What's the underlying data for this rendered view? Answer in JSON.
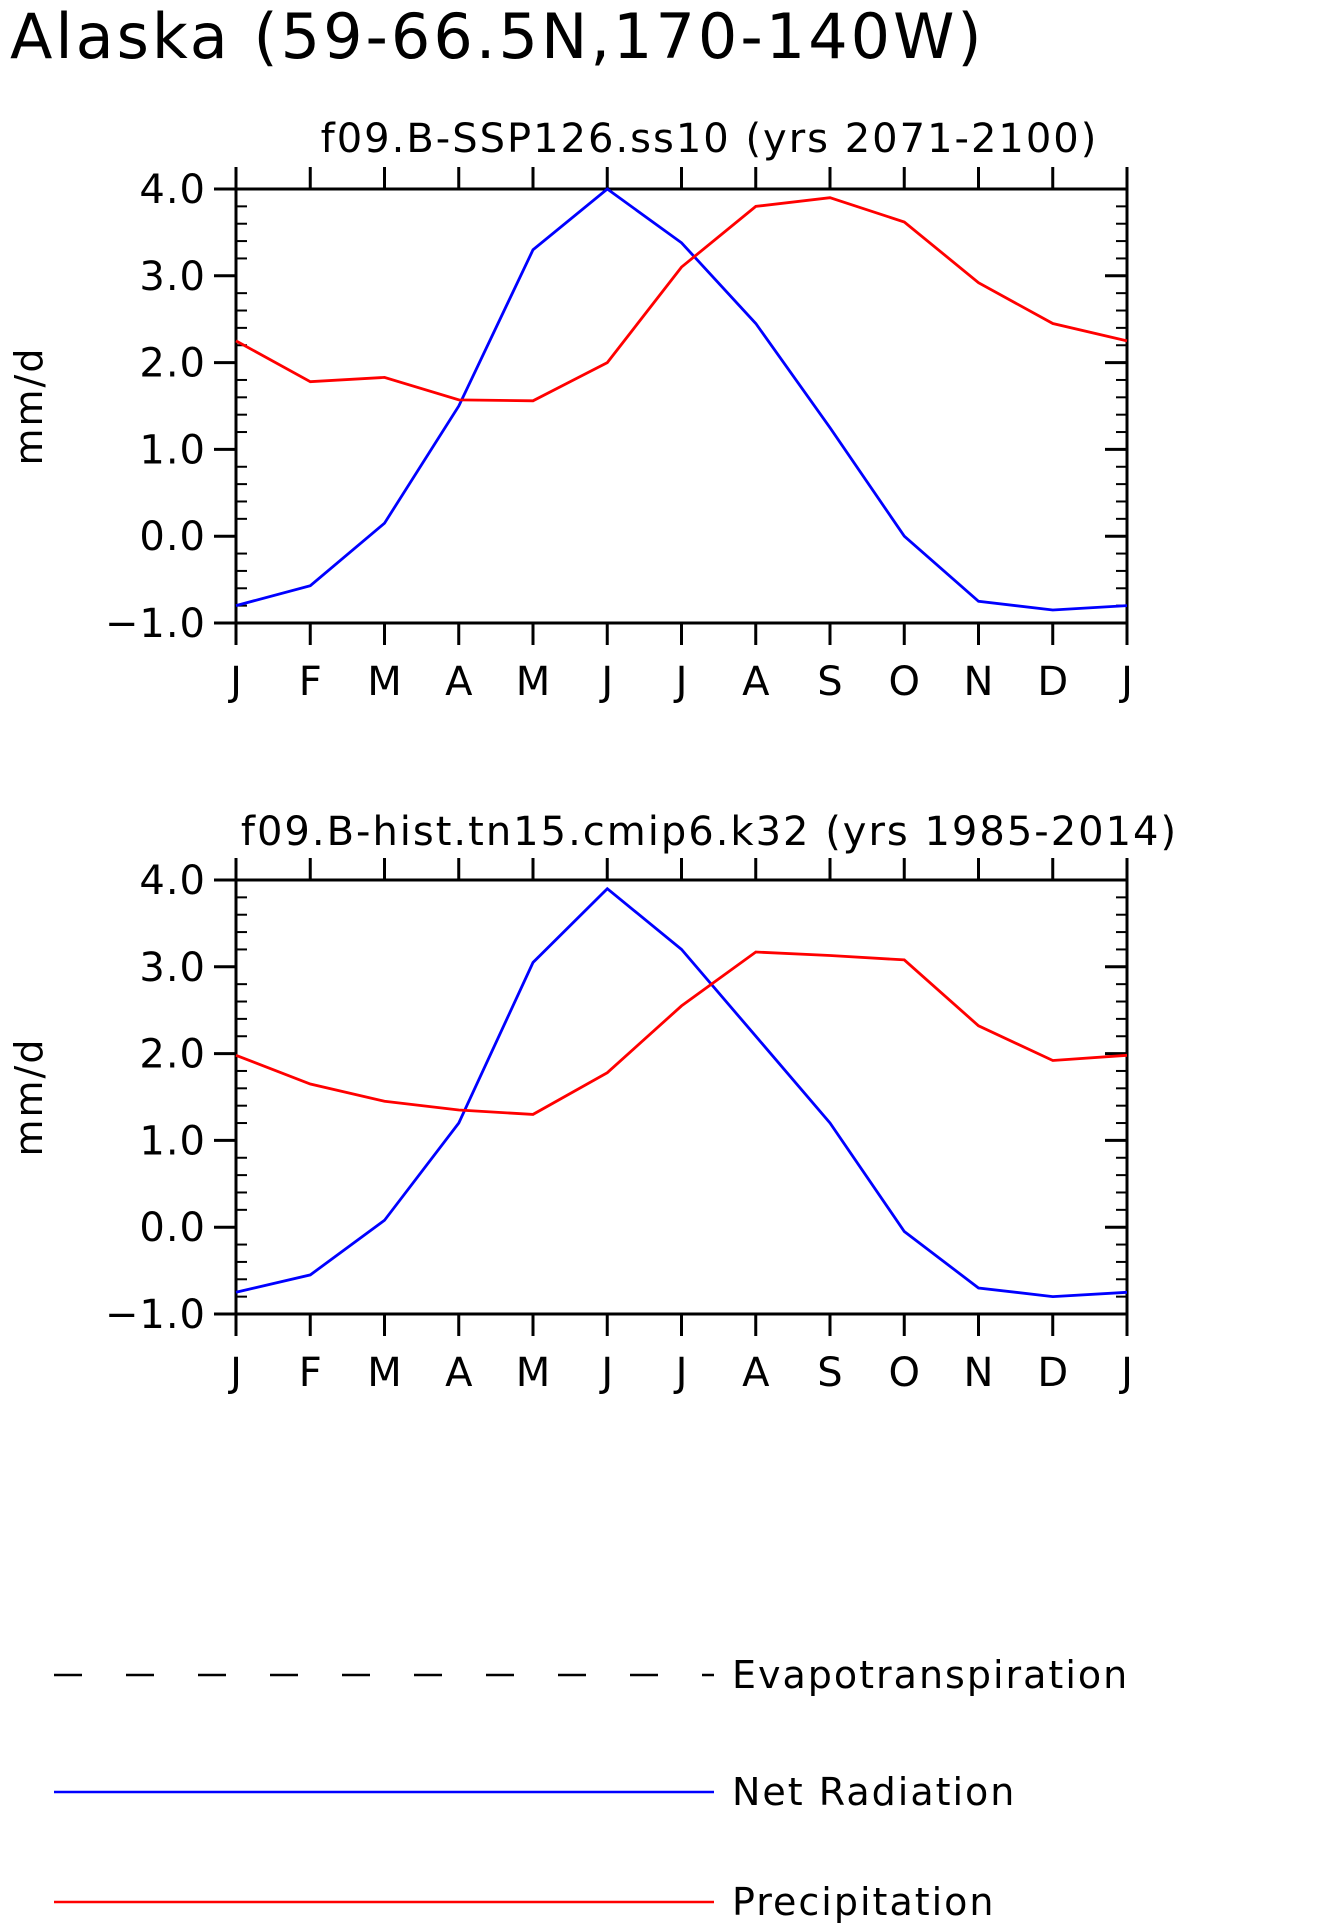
{
  "page": {
    "title": "Alaska (59-66.5N,170-140W)"
  },
  "legend": {
    "items": [
      {
        "label": "Evapotranspiration",
        "color": "#000000",
        "style": "dashed"
      },
      {
        "label": "Net Radiation",
        "color": "#0000ff",
        "style": "solid"
      },
      {
        "label": "Precipitation",
        "color": "#ff0000",
        "style": "solid"
      }
    ]
  },
  "chart_data": [
    {
      "type": "line",
      "title": "f09.B-SSP126.ss10 (yrs 2071-2100)",
      "xlabel": "",
      "ylabel": "mm/d",
      "categories": [
        "J",
        "F",
        "M",
        "A",
        "M",
        "J",
        "J",
        "A",
        "S",
        "O",
        "N",
        "D",
        "J"
      ],
      "ylim": [
        -1.0,
        4.0
      ],
      "yticks": [
        "4.0",
        "3.0",
        "2.0",
        "1.0",
        "0.0",
        "-1.0"
      ],
      "grid": false,
      "series": [
        {
          "name": "Net Radiation",
          "color": "#0000ff",
          "values": [
            -0.8,
            -0.57,
            0.15,
            1.5,
            3.3,
            4.0,
            3.38,
            2.45,
            1.25,
            0.0,
            -0.75,
            -0.85,
            -0.8
          ]
        },
        {
          "name": "Precipitation",
          "color": "#ff0000",
          "values": [
            2.25,
            1.78,
            1.83,
            1.57,
            1.56,
            2.0,
            3.1,
            3.8,
            3.9,
            3.62,
            2.92,
            2.45,
            2.25
          ]
        }
      ]
    },
    {
      "type": "line",
      "title": "f09.B-hist.tn15.cmip6.k32 (yrs 1985-2014)",
      "xlabel": "",
      "ylabel": "mm/d",
      "categories": [
        "J",
        "F",
        "M",
        "A",
        "M",
        "J",
        "J",
        "A",
        "S",
        "O",
        "N",
        "D",
        "J"
      ],
      "ylim": [
        -1.0,
        4.0
      ],
      "yticks": [
        "4.0",
        "3.0",
        "2.0",
        "1.0",
        "0.0",
        "-1.0"
      ],
      "grid": false,
      "series": [
        {
          "name": "Net Radiation",
          "color": "#0000ff",
          "values": [
            -0.75,
            -0.55,
            0.08,
            1.2,
            3.05,
            3.9,
            3.2,
            2.2,
            1.2,
            -0.05,
            -0.7,
            -0.8,
            -0.75
          ]
        },
        {
          "name": "Precipitation",
          "color": "#ff0000",
          "values": [
            1.98,
            1.65,
            1.45,
            1.35,
            1.3,
            1.78,
            2.55,
            3.17,
            3.13,
            3.08,
            2.32,
            1.92,
            1.98
          ]
        }
      ]
    }
  ]
}
